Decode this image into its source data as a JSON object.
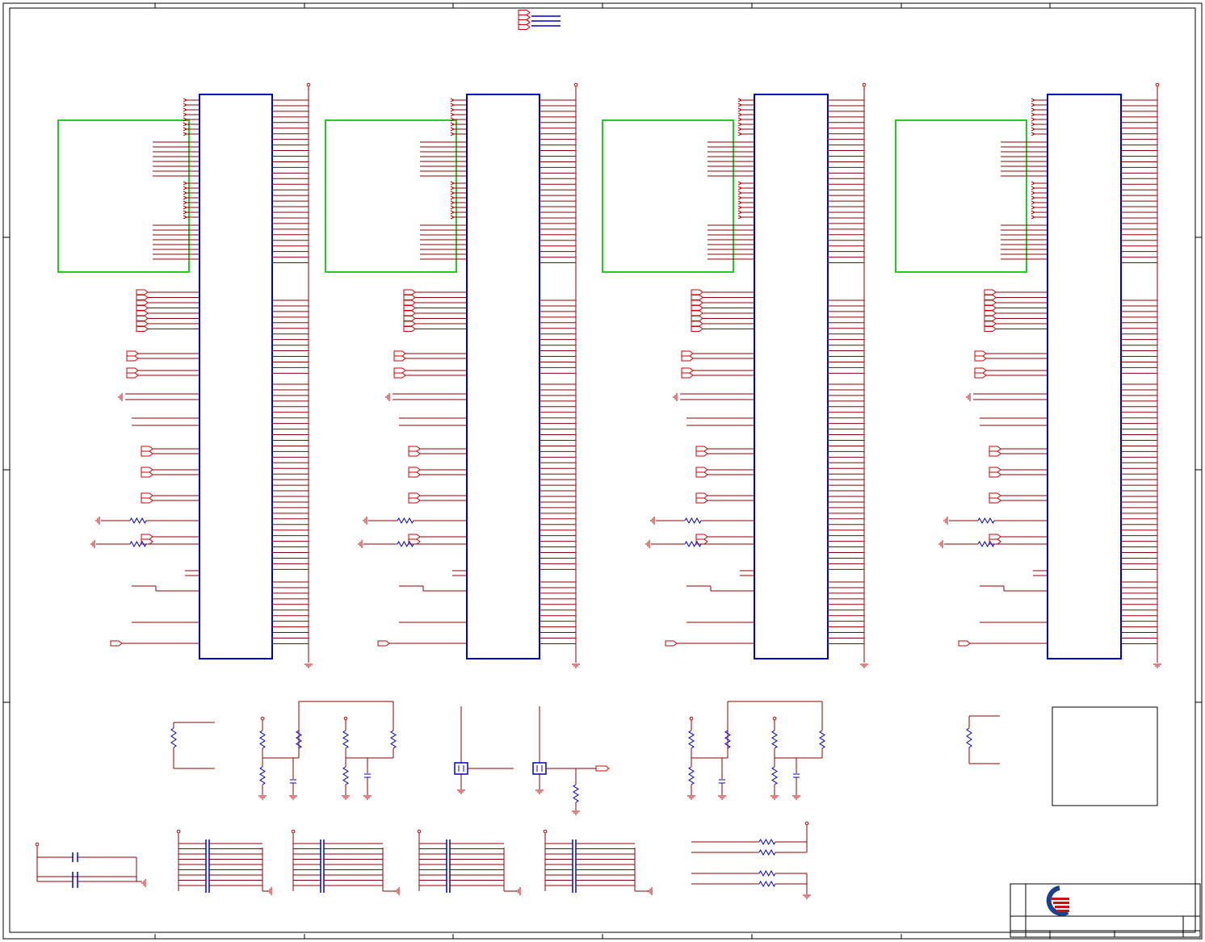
{
  "sheet": {
    "ic_count": 4,
    "pins_right_top": 30,
    "pins_right_mid": 34,
    "pins_right_bottom": 12,
    "bus_lines_per_group": 8
  },
  "colors": {
    "wire": "#8b0000",
    "symbol": "#cc0000",
    "ic_outline": "#0000cc",
    "annotation_box": "#22cc22",
    "sheet_border": "#000000",
    "logo_red": "#cc1111",
    "logo_blue": "#1d3f8f"
  },
  "title_block": {
    "logo": "company-logo-icon"
  }
}
